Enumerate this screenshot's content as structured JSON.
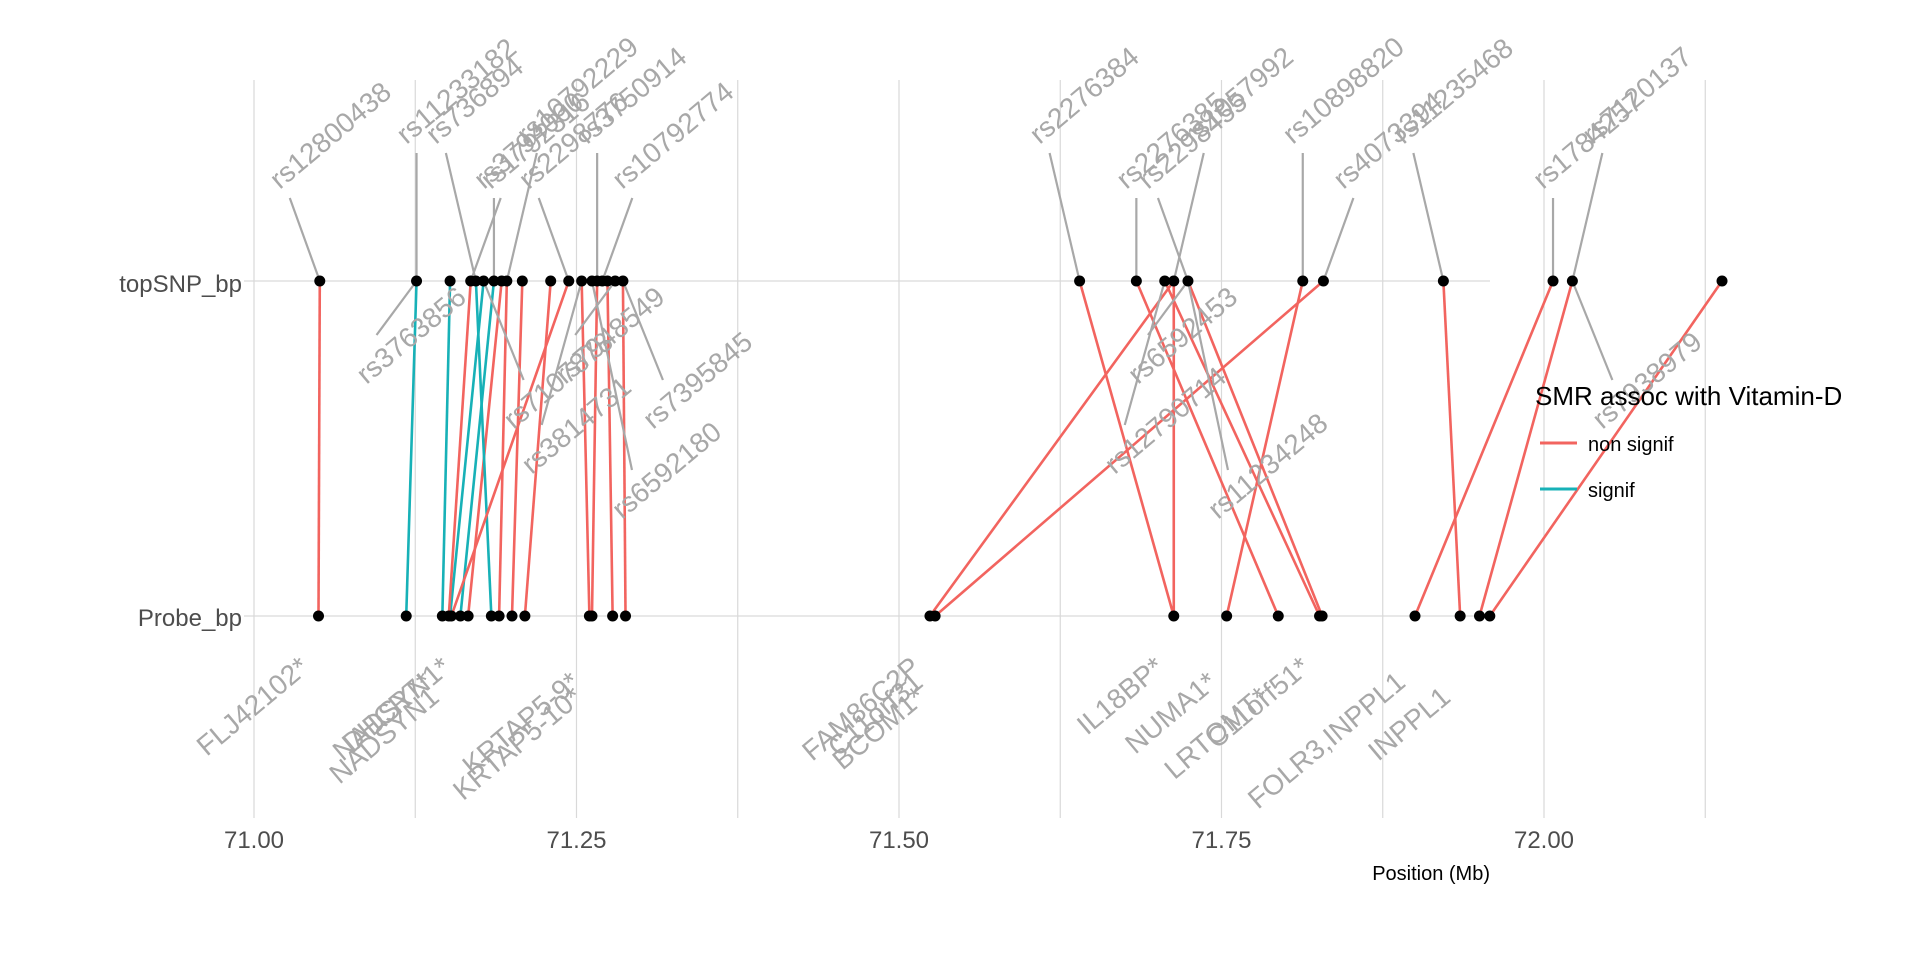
{
  "chart_data": {
    "type": "line",
    "title": "",
    "xlabel": "Position (Mb)",
    "ylabel": "",
    "xlim": [
      71.0,
      72.2
    ],
    "x_ticks": [
      71.0,
      71.25,
      71.5,
      71.75,
      72.0
    ],
    "x_tick_labels": [
      "71.00",
      "71.25",
      "71.50",
      "71.75",
      "72.00"
    ],
    "y_categories": [
      "topSNP_bp",
      "Probe_bp"
    ],
    "grid": true,
    "legend": {
      "title": "SMR assoc with Vitamin-D",
      "placement": "right",
      "entries": [
        {
          "label": "non signif",
          "color": "#f2645f"
        },
        {
          "label": "signif",
          "color": "#17b1b7"
        }
      ]
    },
    "colors": {
      "non signif": "#f2645f",
      "signif": "#17b1b7",
      "point": "#000000",
      "label": "#a8a8a8"
    },
    "links": [
      {
        "probe": 71.05,
        "snp": 71.051,
        "assoc": "non signif"
      },
      {
        "probe": 71.118,
        "snp": 71.126,
        "assoc": "signif"
      },
      {
        "probe": 71.146,
        "snp": 71.152,
        "assoc": "signif"
      },
      {
        "probe": 71.152,
        "snp": 71.178,
        "assoc": "signif"
      },
      {
        "probe": 71.16,
        "snp": 71.186,
        "assoc": "signif"
      },
      {
        "probe": 71.166,
        "snp": 71.192,
        "assoc": "non signif"
      },
      {
        "probe": 71.151,
        "snp": 71.168,
        "assoc": "non signif"
      },
      {
        "probe": 71.184,
        "snp": 71.172,
        "assoc": "signif"
      },
      {
        "probe": 71.19,
        "snp": 71.196,
        "assoc": "non signif"
      },
      {
        "probe": 71.2,
        "snp": 71.208,
        "assoc": "non signif"
      },
      {
        "probe": 71.21,
        "snp": 71.23,
        "assoc": "non signif"
      },
      {
        "probe": 71.153,
        "snp": 71.244,
        "assoc": "non signif"
      },
      {
        "probe": 71.26,
        "snp": 71.254,
        "assoc": "non signif"
      },
      {
        "probe": 71.262,
        "snp": 71.266,
        "assoc": "non signif"
      },
      {
        "probe": 71.278,
        "snp": 71.274,
        "assoc": "non signif"
      },
      {
        "probe": 71.288,
        "snp": 71.286,
        "assoc": "non signif"
      },
      {
        "probe": 71.524,
        "snp": 71.713,
        "assoc": "non signif"
      },
      {
        "probe": 71.528,
        "snp": 71.829,
        "assoc": "non signif"
      },
      {
        "probe": 71.713,
        "snp": 71.64,
        "assoc": "non signif"
      },
      {
        "probe": 71.713,
        "snp": 71.713,
        "assoc": "non signif"
      },
      {
        "probe": 71.754,
        "snp": 71.813,
        "assoc": "non signif"
      },
      {
        "probe": 71.794,
        "snp": 71.684,
        "assoc": "non signif"
      },
      {
        "probe": 71.826,
        "snp": 71.706,
        "assoc": "non signif"
      },
      {
        "probe": 71.828,
        "snp": 71.724,
        "assoc": "non signif"
      },
      {
        "probe": 71.9,
        "snp": 72.007,
        "assoc": "non signif"
      },
      {
        "probe": 71.935,
        "snp": 71.922,
        "assoc": "non signif"
      },
      {
        "probe": 71.95,
        "snp": 72.022,
        "assoc": "non signif"
      },
      {
        "probe": 71.958,
        "snp": 72.138,
        "assoc": "non signif"
      }
    ],
    "snp_points": [
      71.051,
      71.126,
      71.152,
      71.168,
      71.172,
      71.178,
      71.186,
      71.192,
      71.196,
      71.208,
      71.23,
      71.244,
      71.254,
      71.262,
      71.266,
      71.27,
      71.274,
      71.28,
      71.286,
      71.64,
      71.684,
      71.706,
      71.713,
      71.724,
      71.813,
      71.829,
      71.922,
      72.007,
      72.022,
      72.138
    ],
    "probe_points": [
      71.05,
      71.118,
      71.146,
      71.151,
      71.153,
      71.16,
      71.166,
      71.184,
      71.19,
      71.2,
      71.21,
      71.26,
      71.262,
      71.278,
      71.288,
      71.524,
      71.528,
      71.713,
      71.754,
      71.794,
      71.826,
      71.828,
      71.9,
      71.935,
      71.95,
      71.958
    ],
    "snp_labels": [
      {
        "text": "rs12800438",
        "x": 71.051,
        "dir": "up"
      },
      {
        "text": "rs11233182",
        "x": 71.126,
        "dir": "up"
      },
      {
        "text": "rs3763856",
        "x": 71.126,
        "dir": "down"
      },
      {
        "text": "rs1792316",
        "x": 71.168,
        "dir": "up"
      },
      {
        "text": "rs736894",
        "x": 71.172,
        "dir": "up"
      },
      {
        "text": "rs3794060",
        "x": 71.186,
        "dir": "up"
      },
      {
        "text": "rs10792229",
        "x": 71.196,
        "dir": "up"
      },
      {
        "text": "rs7107878",
        "x": 71.178,
        "dir": "down"
      },
      {
        "text": "rs2298776",
        "x": 71.244,
        "dir": "up"
      },
      {
        "text": "rs3814731",
        "x": 71.254,
        "dir": "down"
      },
      {
        "text": "rs6592180",
        "x": 71.262,
        "dir": "down"
      },
      {
        "text": "rs3750914",
        "x": 71.266,
        "dir": "up"
      },
      {
        "text": "rs10792774",
        "x": 71.27,
        "dir": "up"
      },
      {
        "text": "rs7948549",
        "x": 71.28,
        "dir": "down"
      },
      {
        "text": "rs7395845",
        "x": 71.286,
        "dir": "down"
      },
      {
        "text": "rs2276384",
        "x": 71.64,
        "dir": "up"
      },
      {
        "text": "rs2276385",
        "x": 71.684,
        "dir": "up"
      },
      {
        "text": "rs12790714",
        "x": 71.706,
        "dir": "down"
      },
      {
        "text": "rs1057992",
        "x": 71.713,
        "dir": "up"
      },
      {
        "text": "rs2298455",
        "x": 71.724,
        "dir": "up"
      },
      {
        "text": "rs11234248",
        "x": 71.724,
        "dir": "down"
      },
      {
        "text": "rs6592453",
        "x": 71.724,
        "dir": "down"
      },
      {
        "text": "rs10898820",
        "x": 71.813,
        "dir": "up"
      },
      {
        "text": "rs4073394",
        "x": 71.829,
        "dir": "up"
      },
      {
        "text": "rs11235468",
        "x": 71.922,
        "dir": "up"
      },
      {
        "text": "rs1784257",
        "x": 72.007,
        "dir": "up"
      },
      {
        "text": "rs7120137",
        "x": 72.022,
        "dir": "up"
      },
      {
        "text": "rs7938979",
        "x": 72.022,
        "dir": "down"
      }
    ],
    "gene_labels": [
      {
        "text": "FLJ42102*",
        "x": 71.05
      },
      {
        "text": "DHCR7*",
        "x": 71.146
      },
      {
        "text": "NADSYN1",
        "x": 71.151
      },
      {
        "text": "NADSYN1*",
        "x": 71.16
      },
      {
        "text": "KRTAP5-9*",
        "x": 71.26
      },
      {
        "text": "KRTAP5-10*",
        "x": 71.262
      },
      {
        "text": "FAM86C2P",
        "x": 71.524
      },
      {
        "text": "C11orf31",
        "x": 71.526
      },
      {
        "text": "BCOM1*",
        "x": 71.528
      },
      {
        "text": "IL18BP*",
        "x": 71.713
      },
      {
        "text": "NUMA1*",
        "x": 71.754
      },
      {
        "text": "LRTOMT*",
        "x": 71.794
      },
      {
        "text": "C11orf51*",
        "x": 71.826
      },
      {
        "text": "FOLR3,INPPL1",
        "x": 71.9
      },
      {
        "text": "INPPL1",
        "x": 71.935
      }
    ]
  }
}
